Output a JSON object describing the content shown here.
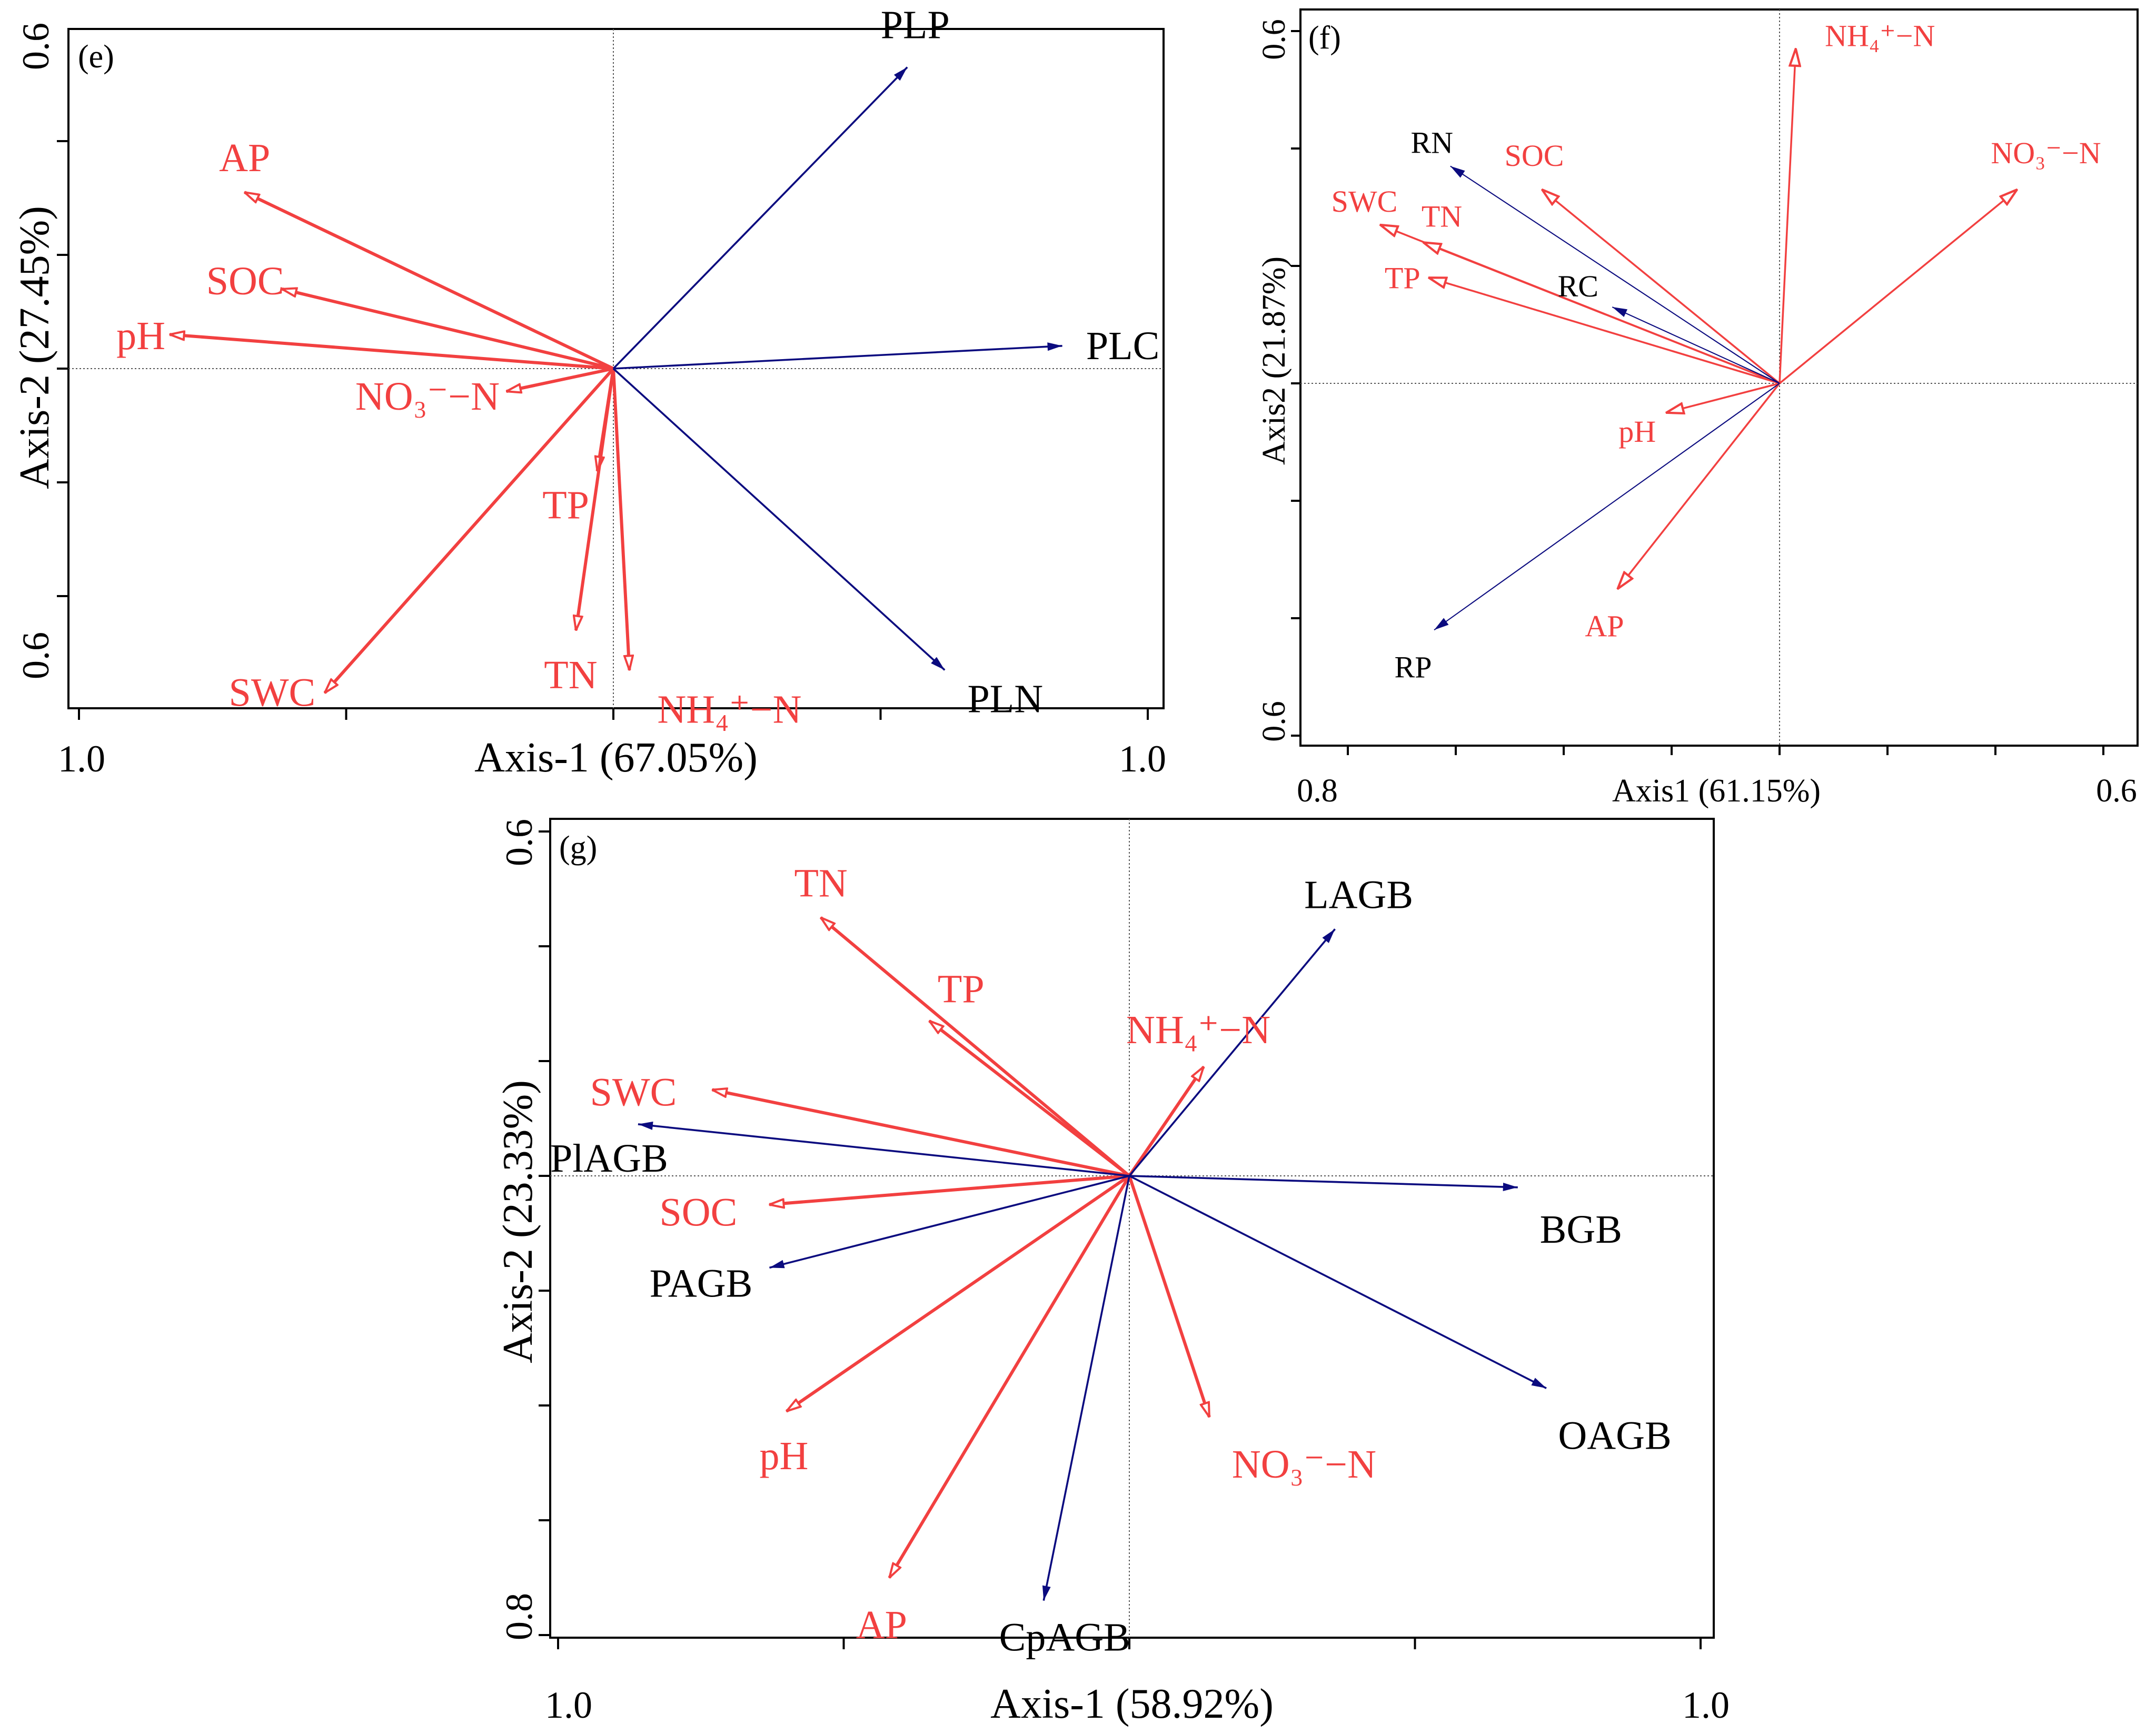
{
  "colors": {
    "env": "#f24040",
    "bio": "#0b0b7f",
    "frame": "#000000"
  },
  "chart_data": [
    {
      "type": "biplot",
      "panel_label": "(e)",
      "xlabel": "Axis-1 (67.05%)",
      "ylabel": "Axis-2 (27.45%)",
      "x_tick_labels": {
        "left": "1.0",
        "right": "1.0"
      },
      "y_tick_labels": {
        "top": "0.6",
        "bottom": "0.6"
      },
      "xlim": [
        -1.0,
        1.0
      ],
      "ylim": [
        -0.6,
        0.6
      ],
      "y_minor_ticks": [
        -0.4,
        -0.2,
        0.2,
        0.4
      ],
      "x_minor_ticks": [
        -0.5,
        0.5
      ],
      "env_vectors": [
        {
          "label": "AP",
          "x": -0.69,
          "y": 0.31
        },
        {
          "label": "SOC",
          "x": -0.62,
          "y": 0.14
        },
        {
          "label": "pH",
          "x": -0.83,
          "y": 0.06
        },
        {
          "label": "NO₃⁻−N",
          "x": -0.2,
          "y": -0.04
        },
        {
          "label": "TP",
          "x": -0.03,
          "y": -0.18
        },
        {
          "label": "TN",
          "x": -0.07,
          "y": -0.46
        },
        {
          "label": "NH₄⁺−N",
          "x": 0.03,
          "y": -0.53
        },
        {
          "label": "SWC",
          "x": -0.54,
          "y": -0.57
        }
      ],
      "bio_vectors": [
        {
          "label": "PLP",
          "x": 0.55,
          "y": 0.53
        },
        {
          "label": "PLC",
          "x": 0.84,
          "y": 0.04
        },
        {
          "label": "PLN",
          "x": 0.62,
          "y": -0.53
        }
      ]
    },
    {
      "type": "biplot",
      "panel_label": "(f)",
      "xlabel": "Axis1 (61.15%)",
      "ylabel": "Axis2 (21.87%)",
      "x_tick_labels": {
        "left": "0.8",
        "right": "0.6"
      },
      "y_tick_labels": {
        "top": "0.6",
        "bottom": "0.6"
      },
      "xlim": [
        -0.8,
        0.6
      ],
      "ylim": [
        -0.6,
        0.6
      ],
      "y_minor_ticks": [
        -0.4,
        -0.2,
        0.2,
        0.4
      ],
      "x_minor_ticks": [
        -0.6,
        -0.4,
        -0.2,
        0.2,
        0.4
      ],
      "env_vectors": [
        {
          "label": "NH₄⁺−N",
          "x": 0.03,
          "y": 0.57
        },
        {
          "label": "NO₃⁻−N",
          "x": 0.44,
          "y": 0.33
        },
        {
          "label": "SOC",
          "x": -0.44,
          "y": 0.33
        },
        {
          "label": "SWC",
          "x": -0.74,
          "y": 0.27
        },
        {
          "label": "TN",
          "x": -0.66,
          "y": 0.24
        },
        {
          "label": "TP",
          "x": -0.65,
          "y": 0.18
        },
        {
          "label": "pH",
          "x": -0.21,
          "y": -0.05
        },
        {
          "label": "AP",
          "x": -0.3,
          "y": -0.35
        }
      ],
      "bio_vectors": [
        {
          "label": "RN",
          "x": -0.61,
          "y": 0.37
        },
        {
          "label": "RC",
          "x": -0.31,
          "y": 0.13
        },
        {
          "label": "RP",
          "x": -0.64,
          "y": -0.42
        }
      ]
    },
    {
      "type": "biplot",
      "panel_label": "(g)",
      "xlabel": "Axis-1 (58.92%)",
      "ylabel": "Axis-2 (23.33%)",
      "x_tick_labels": {
        "left": "1.0",
        "right": "1.0"
      },
      "y_tick_labels": {
        "top": "0.6",
        "bottom": "0.8"
      },
      "xlim": [
        -1.0,
        1.0
      ],
      "ylim": [
        -0.8,
        0.6
      ],
      "y_minor_ticks": [
        -0.6,
        -0.4,
        -0.2,
        0.2,
        0.4
      ],
      "x_minor_ticks": [
        -0.5,
        0.5
      ],
      "env_vectors": [
        {
          "label": "TN",
          "x": -0.54,
          "y": 0.45
        },
        {
          "label": "TP",
          "x": -0.35,
          "y": 0.27
        },
        {
          "label": "NH₄⁺−N",
          "x": 0.13,
          "y": 0.19
        },
        {
          "label": "SWC",
          "x": -0.73,
          "y": 0.15
        },
        {
          "label": "SOC",
          "x": -0.63,
          "y": -0.05
        },
        {
          "label": "pH",
          "x": -0.6,
          "y": -0.41
        },
        {
          "label": "AP",
          "x": -0.42,
          "y": -0.7
        },
        {
          "label": "NO₃⁻−N",
          "x": 0.14,
          "y": -0.42
        }
      ],
      "bio_vectors": [
        {
          "label": "LAGB",
          "x": 0.36,
          "y": 0.43
        },
        {
          "label": "PlAGB",
          "x": -0.86,
          "y": 0.09
        },
        {
          "label": "PAGB",
          "x": -0.63,
          "y": -0.16
        },
        {
          "label": "BGB",
          "x": 0.68,
          "y": -0.02
        },
        {
          "label": "OAGB",
          "x": 0.73,
          "y": -0.37
        },
        {
          "label": "CpAGB",
          "x": -0.15,
          "y": -0.74
        }
      ]
    }
  ]
}
